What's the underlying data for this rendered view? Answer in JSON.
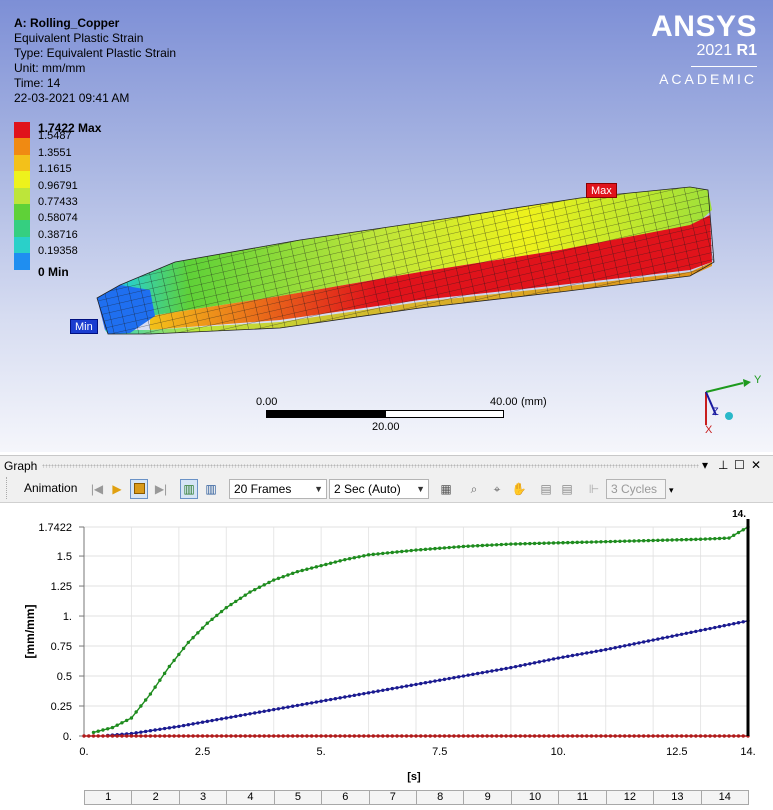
{
  "viewport": {
    "info": {
      "title": "A: Rolling_Copper",
      "line1": "Equivalent Plastic Strain",
      "line2": "Type: Equivalent Plastic Strain",
      "line3": "Unit: mm/mm",
      "line4": "Time: 14",
      "line5": "22-03-2021 09:41 AM"
    },
    "brand": {
      "name": "ANSYS",
      "version": "2021",
      "release": "R1",
      "edition": "ACADEMIC"
    },
    "legend": [
      {
        "label": "1.7422 Max",
        "color": "#e0131b",
        "bold": true
      },
      {
        "label": "1.5487",
        "color": "#f08a12"
      },
      {
        "label": "1.3551",
        "color": "#f3c11a"
      },
      {
        "label": "1.1615",
        "color": "#eef21c"
      },
      {
        "label": "0.96791",
        "color": "#bde53a"
      },
      {
        "label": "0.77433",
        "color": "#5fd138"
      },
      {
        "label": "0.58074",
        "color": "#35cf80"
      },
      {
        "label": "0.38716",
        "color": "#2ad0c9"
      },
      {
        "label": "0.19358",
        "color": "#1f8ef0"
      },
      {
        "label": "0 Min",
        "color": "#1a3df0",
        "bold": true
      }
    ],
    "probes": {
      "max": "Max",
      "min": "Min"
    },
    "scale_bar": {
      "left": "0.00",
      "right": "40.00",
      "unit": "(mm)",
      "middle": "20.00"
    },
    "triad": {
      "y": "Y",
      "z": "Z",
      "x": "X"
    }
  },
  "graph": {
    "title": "Graph",
    "window_controls": {
      "dropdown": "▾",
      "pin": "⊥",
      "restore": "☐",
      "close": "✕"
    },
    "toolbar": {
      "animation_label": "Animation",
      "frames": "20 Frames",
      "duration": "2 Sec (Auto)",
      "cycles": "3 Cycles"
    },
    "tick_strip": [
      "1",
      "2",
      "3",
      "4",
      "5",
      "6",
      "7",
      "8",
      "9",
      "10",
      "11",
      "12",
      "13",
      "14"
    ]
  },
  "chart_data": {
    "type": "line",
    "xlabel": "[s]",
    "ylabel": "[mm/mm]",
    "xlim": [
      0,
      14
    ],
    "ylim": [
      0,
      1.7422
    ],
    "x_ticks": [
      "0.",
      "2.5",
      "5.",
      "7.5",
      "10.",
      "12.5",
      "14."
    ],
    "y_ticks": [
      "0.",
      "0.25",
      "0.5",
      "0.75",
      "1.",
      "1.25",
      "1.5",
      "1.7422"
    ],
    "cursor_label": "14.",
    "grid": true,
    "series": [
      {
        "color": "#1e8c1e",
        "points": [
          [
            0.2,
            0.03
          ],
          [
            0.6,
            0.07
          ],
          [
            1.0,
            0.15
          ],
          [
            1.4,
            0.35
          ],
          [
            1.8,
            0.58
          ],
          [
            2.2,
            0.78
          ],
          [
            2.6,
            0.94
          ],
          [
            3.0,
            1.07
          ],
          [
            3.5,
            1.2
          ],
          [
            4.0,
            1.3
          ],
          [
            4.5,
            1.37
          ],
          [
            5.0,
            1.42
          ],
          [
            5.5,
            1.47
          ],
          [
            6.0,
            1.51
          ],
          [
            7.0,
            1.55
          ],
          [
            8.0,
            1.58
          ],
          [
            9.0,
            1.6
          ],
          [
            10.0,
            1.61
          ],
          [
            11.0,
            1.62
          ],
          [
            12.0,
            1.63
          ],
          [
            13.0,
            1.64
          ],
          [
            13.6,
            1.65
          ],
          [
            14.0,
            1.7422
          ]
        ]
      },
      {
        "color": "#1a1a90",
        "points": [
          [
            0.5,
            0.005
          ],
          [
            1.0,
            0.02
          ],
          [
            2.0,
            0.08
          ],
          [
            3.0,
            0.15
          ],
          [
            4.0,
            0.22
          ],
          [
            5.0,
            0.29
          ],
          [
            6.0,
            0.36
          ],
          [
            7.0,
            0.43
          ],
          [
            8.0,
            0.5
          ],
          [
            9.0,
            0.57
          ],
          [
            10.0,
            0.65
          ],
          [
            11.0,
            0.72
          ],
          [
            12.0,
            0.8
          ],
          [
            13.0,
            0.88
          ],
          [
            13.5,
            0.92
          ],
          [
            14.0,
            0.96
          ]
        ]
      },
      {
        "color": "#b01a1a",
        "points": [
          [
            0.0,
            0.0
          ],
          [
            14.0,
            0.0
          ]
        ]
      }
    ]
  }
}
